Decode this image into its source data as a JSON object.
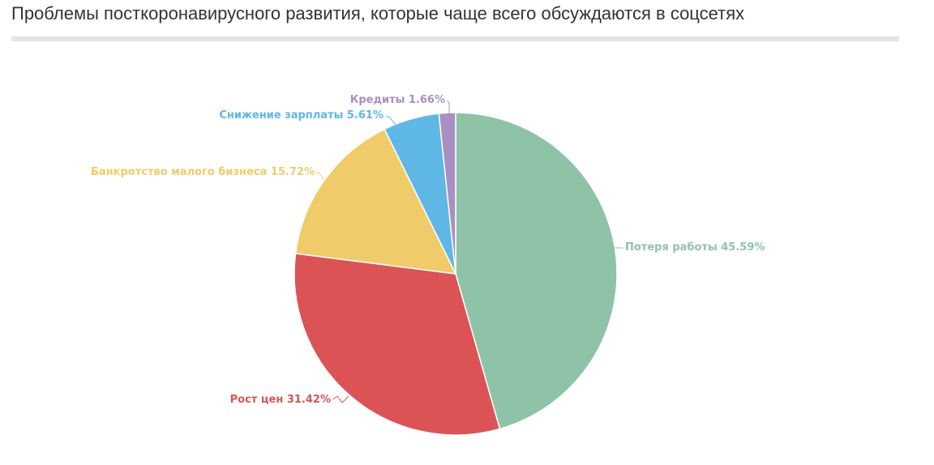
{
  "title": "Проблемы посткоронавирусного развития, которые чаще всего обсуждаются в соцсетях",
  "chart_data": {
    "type": "pie",
    "title": "Проблемы посткоронавирусного развития, которые чаще всего обсуждаются в соцсетях",
    "value_suffix": "%",
    "start_angle_deg": 0,
    "direction": "clockwise",
    "slices": [
      {
        "label": "Потеря работы",
        "value": 45.59,
        "color": "#8fc3a7"
      },
      {
        "label": "Рост цен",
        "value": 31.42,
        "color": "#dc5356"
      },
      {
        "label": "Банкротство малого бизнеса",
        "value": 15.72,
        "color": "#f0cb69"
      },
      {
        "label": "Снижение зарплаты",
        "value": 5.61,
        "color": "#5fb7e5"
      },
      {
        "label": "Кредиты",
        "value": 1.66,
        "color": "#a890c2"
      }
    ]
  }
}
